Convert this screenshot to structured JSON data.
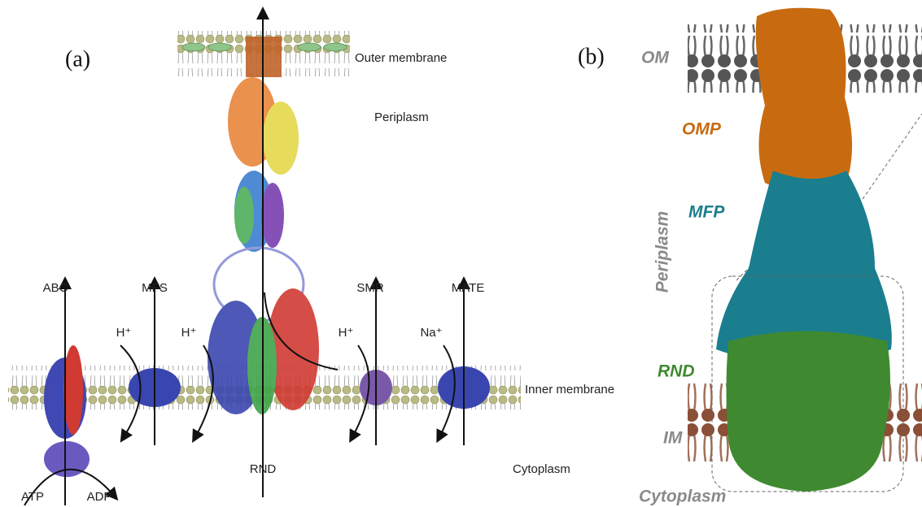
{
  "panel_a": {
    "label": "(a)",
    "outer_membrane": "Outer membrane",
    "periplasm": "Periplasm",
    "transporters": [
      "ABC",
      "MFS",
      "SMR",
      "MATE"
    ],
    "ions": [
      "H⁺",
      "H⁺",
      "H⁺",
      "Na⁺"
    ],
    "inner_membrane": "Inner membrane",
    "rnd": "RND",
    "cytoplasm": "Cytoplasm",
    "atp": "ATP",
    "adp": "ADP"
  },
  "panel_b": {
    "label": "(b)",
    "om": "OM",
    "omp": "OMP",
    "mfp": "MFP",
    "periplasm": "Periplasm",
    "rnd": "RND",
    "im": "IM",
    "cytoplasm": "Cytoplasm"
  }
}
